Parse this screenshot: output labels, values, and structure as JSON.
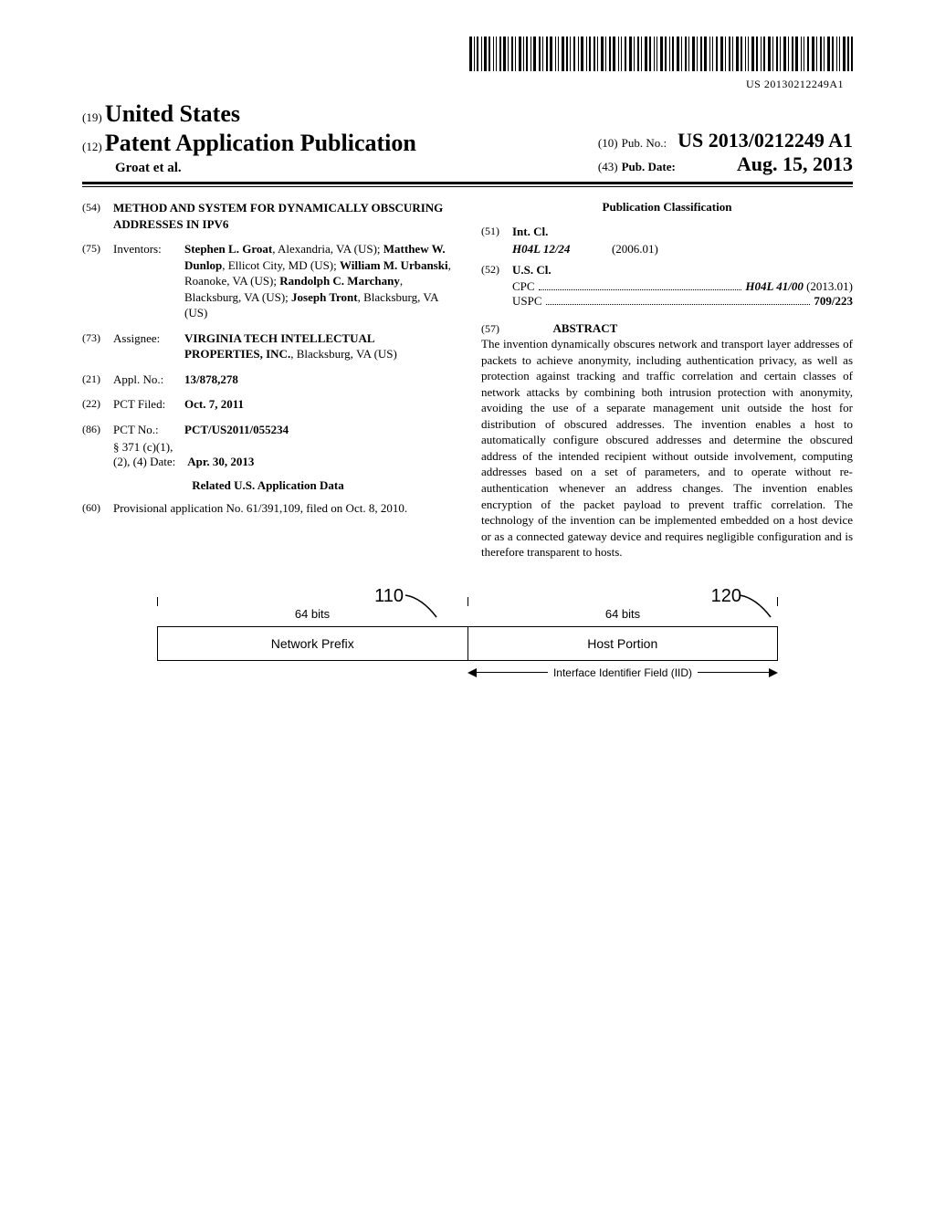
{
  "barcode_number": "US 20130212249A1",
  "header": {
    "country_num": "(19)",
    "country": "United States",
    "doc_type_num": "(12)",
    "doc_type": "Patent Application Publication",
    "authors": "Groat et al.",
    "pubno_num": "(10)",
    "pubno_label": "Pub. No.:",
    "pubno_value": "US 2013/0212249 A1",
    "pubdate_num": "(43)",
    "pubdate_label": "Pub. Date:",
    "pubdate_value": "Aug. 15, 2013"
  },
  "title": {
    "num": "(54)",
    "text": "METHOD AND SYSTEM FOR DYNAMICALLY OBSCURING ADDRESSES IN IPV6"
  },
  "inventors": {
    "num": "(75)",
    "label": "Inventors:",
    "text_html": "<b>Stephen L. Groat</b>, Alexandria, VA (US); <b>Matthew W. Dunlop</b>, Ellicot City, MD (US); <b>William M. Urbanski</b>, Roanoke, VA (US); <b>Randolph C. Marchany</b>, Blacksburg, VA (US); <b>Joseph Tront</b>, Blacksburg, VA (US)"
  },
  "assignee": {
    "num": "(73)",
    "label": "Assignee:",
    "text_html": "<b>VIRGINIA TECH INTELLECTUAL PROPERTIES, INC.</b>, Blacksburg, VA (US)"
  },
  "appl_no": {
    "num": "(21)",
    "label": "Appl. No.:",
    "value": "13/878,278"
  },
  "pct_filed": {
    "num": "(22)",
    "label": "PCT Filed:",
    "value": "Oct. 7, 2011"
  },
  "pct_no": {
    "num": "(86)",
    "label": "PCT No.:",
    "value": "PCT/US2011/055234",
    "sub1": "§ 371 (c)(1),",
    "sub2_label": "(2), (4) Date:",
    "sub2_value": "Apr. 30, 2013"
  },
  "related": {
    "heading": "Related U.S. Application Data",
    "num": "(60)",
    "text": "Provisional application No. 61/391,109, filed on Oct. 8, 2010."
  },
  "classification": {
    "heading": "Publication Classification",
    "intcl_num": "(51)",
    "intcl_label": "Int. Cl.",
    "intcl_code": "H04L 12/24",
    "intcl_date": "(2006.01)",
    "uscl_num": "(52)",
    "uscl_label": "U.S. Cl.",
    "cpc_label": "CPC",
    "cpc_value": "H04L 41/00",
    "cpc_date": "(2013.01)",
    "uspc_label": "USPC",
    "uspc_value": "709/223"
  },
  "abstract": {
    "num": "(57)",
    "heading": "ABSTRACT",
    "text": "The invention dynamically obscures network and transport layer addresses of packets to achieve anonymity, including authentication privacy, as well as protection against tracking and traffic correlation and certain classes of network attacks by combining both intrusion protection with anonymity, avoiding the use of a separate management unit outside the host for distribution of obscured addresses. The invention enables a host to automatically configure obscured addresses and determine the obscured address of the intended recipient without outside involvement, computing addresses based on a set of parameters, and to operate without re-authentication whenever an address changes. The invention enables encryption of the packet payload to prevent traffic correlation. The technology of the invention can be implemented embedded on a host device or as a connected gateway device and requires negligible configuration and is therefore transparent to hosts."
  },
  "figure": {
    "ref_left": "110",
    "ref_right": "120",
    "bits_left": "64 bits",
    "bits_right": "64 bits",
    "box_left": "Network Prefix",
    "box_right": "Host Portion",
    "iid_label": "Interface Identifier Field (IID)"
  }
}
